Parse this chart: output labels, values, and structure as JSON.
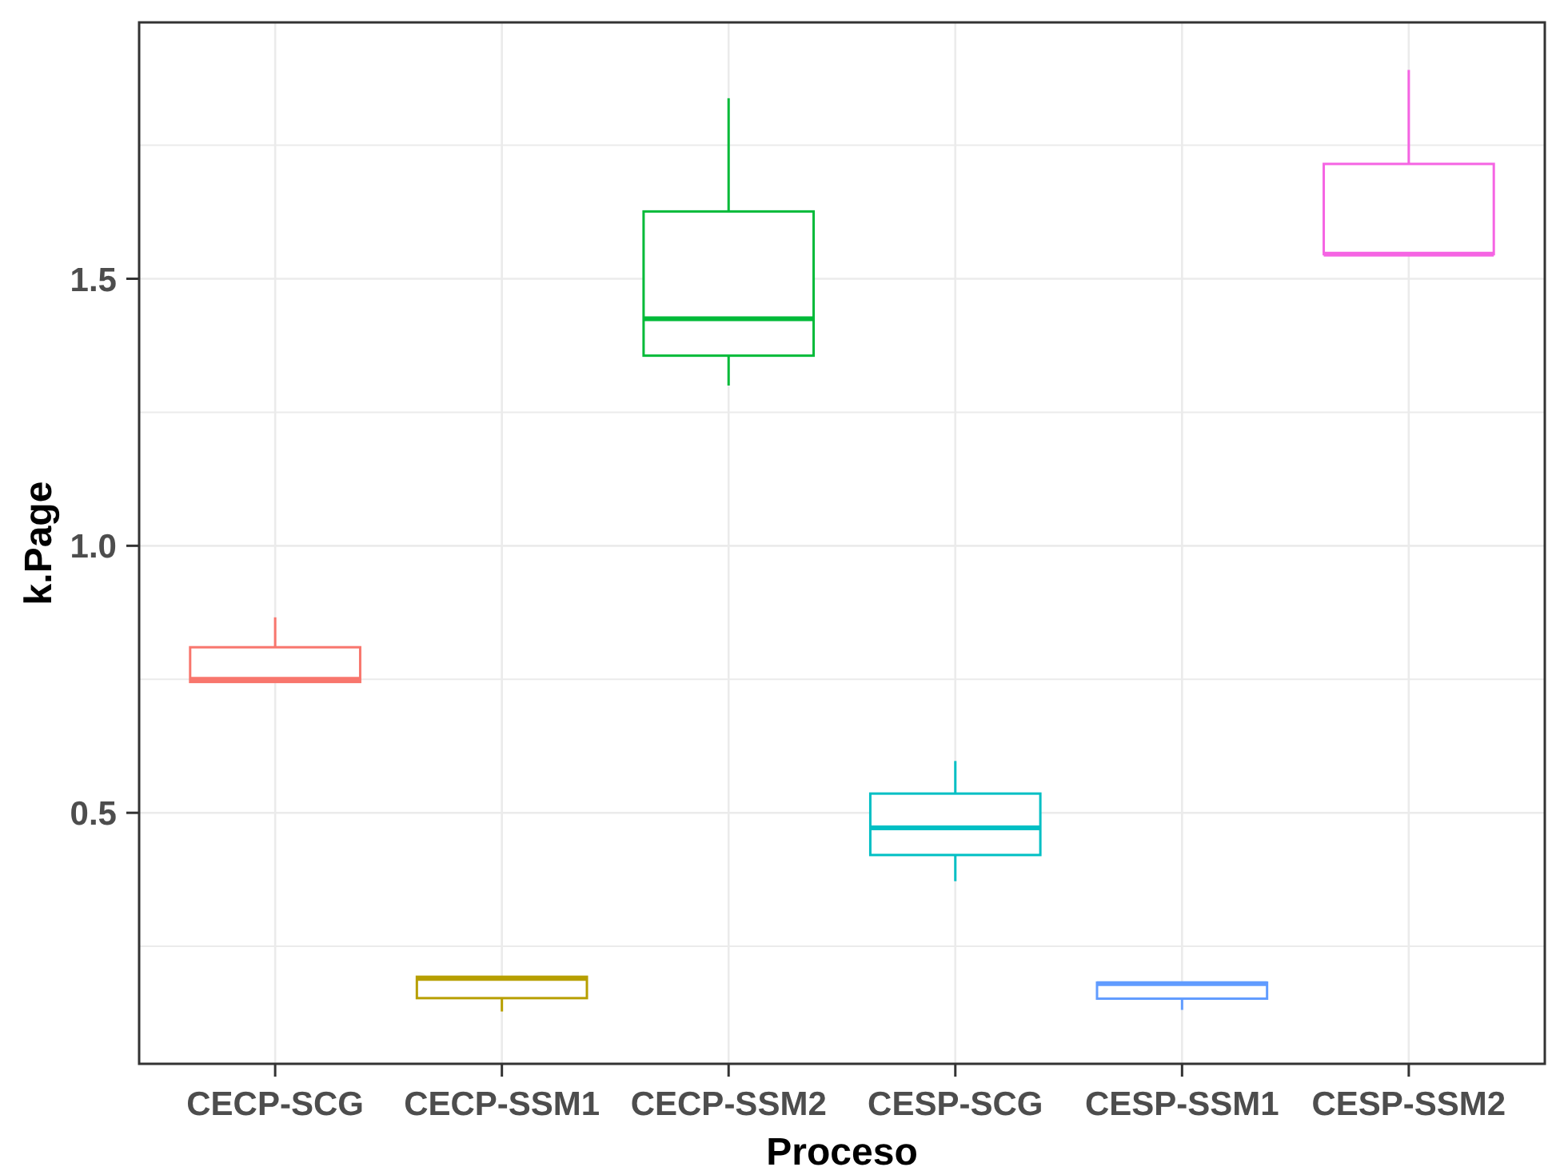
{
  "chart_data": {
    "type": "box",
    "xlabel": "Proceso",
    "ylabel": "k.Page",
    "categories": [
      "CECP-SCG",
      "CECP-SSM1",
      "CECP-SSM2",
      "CESP-SCG",
      "CESP-SSM1",
      "CESP-SSM2"
    ],
    "colors": [
      "#f8766d",
      "#b79f00",
      "#00ba38",
      "#00bfc4",
      "#619cff",
      "#f564e3"
    ],
    "boxes": [
      {
        "low": 0.745,
        "q1": 0.745,
        "median": 0.75,
        "q3": 0.81,
        "high": 0.866
      },
      {
        "low": 0.128,
        "q1": 0.153,
        "median": 0.19,
        "q3": 0.193,
        "high": 0.193
      },
      {
        "low": 1.3,
        "q1": 1.356,
        "median": 1.425,
        "q3": 1.626,
        "high": 1.838
      },
      {
        "low": 0.372,
        "q1": 0.421,
        "median": 0.472,
        "q3": 0.536,
        "high": 0.597
      },
      {
        "low": 0.131,
        "q1": 0.152,
        "median": 0.18,
        "q3": 0.182,
        "high": 0.182
      },
      {
        "low": 1.546,
        "q1": 1.546,
        "median": 1.546,
        "q3": 1.715,
        "high": 1.891
      }
    ],
    "ylim": [
      0.03,
      1.98
    ],
    "yticks": [
      {
        "value": 0.25,
        "label": null
      },
      0.5,
      {
        "value": 0.75,
        "label": null
      },
      {
        "value": 1,
        "label": "1.0"
      },
      {
        "value": 1.25,
        "label": null
      },
      1.5,
      {
        "value": 1.75,
        "label": null
      }
    ],
    "grid": true
  }
}
